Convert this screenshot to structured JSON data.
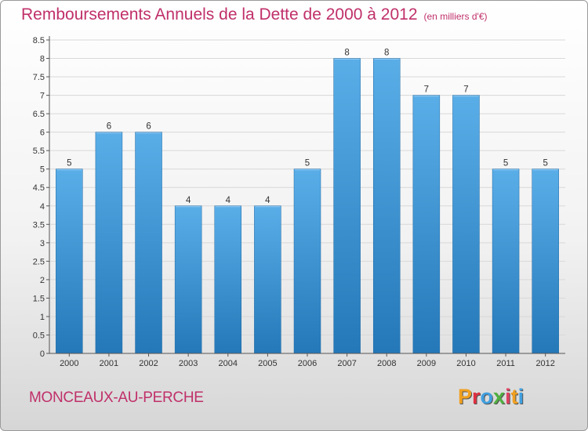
{
  "header": {
    "title": "Remboursements Annuels de la Dette de 2000 à 2012",
    "unit": "(en milliers d'€)"
  },
  "footer": {
    "commune": "MONCEAUX-AU-PERCHE",
    "logo_text": "Proxiti",
    "logo_colors": [
      "#f0a020",
      "#e03040",
      "#40a0e0",
      "#50b040",
      "#e04060",
      "#f0a020",
      "#40a0e0"
    ]
  },
  "chart_data": {
    "type": "bar",
    "title": "Remboursements Annuels de la Dette de 2000 à 2012",
    "xlabel": "",
    "ylabel": "",
    "categories": [
      "2000",
      "2001",
      "2002",
      "2003",
      "2004",
      "2005",
      "2006",
      "2007",
      "2008",
      "2009",
      "2010",
      "2011",
      "2012"
    ],
    "values": [
      5,
      6,
      6,
      4,
      4,
      4,
      5,
      8,
      8,
      7,
      7,
      5,
      5
    ],
    "data_labels": [
      "5",
      "6",
      "6",
      "4",
      "4",
      "4",
      "5",
      "8",
      "8",
      "7",
      "7",
      "5",
      "5"
    ],
    "ylim": [
      0,
      8.5
    ],
    "yticks": [
      0,
      0.5,
      1,
      1.5,
      2,
      2.5,
      3,
      3.5,
      4,
      4.5,
      5,
      5.5,
      6,
      6.5,
      7,
      7.5,
      8,
      8.5
    ],
    "ytick_labels": [
      "0",
      "0.5",
      "1",
      "1.5",
      "2",
      "2.5",
      "3",
      "3.5",
      "4",
      "4.5",
      "5",
      "5.5",
      "6",
      "6.5",
      "7",
      "7.5",
      "8",
      "8.5"
    ],
    "grid": true,
    "bar_color_top": "#5aaee8",
    "bar_color_bottom": "#2478b8"
  }
}
